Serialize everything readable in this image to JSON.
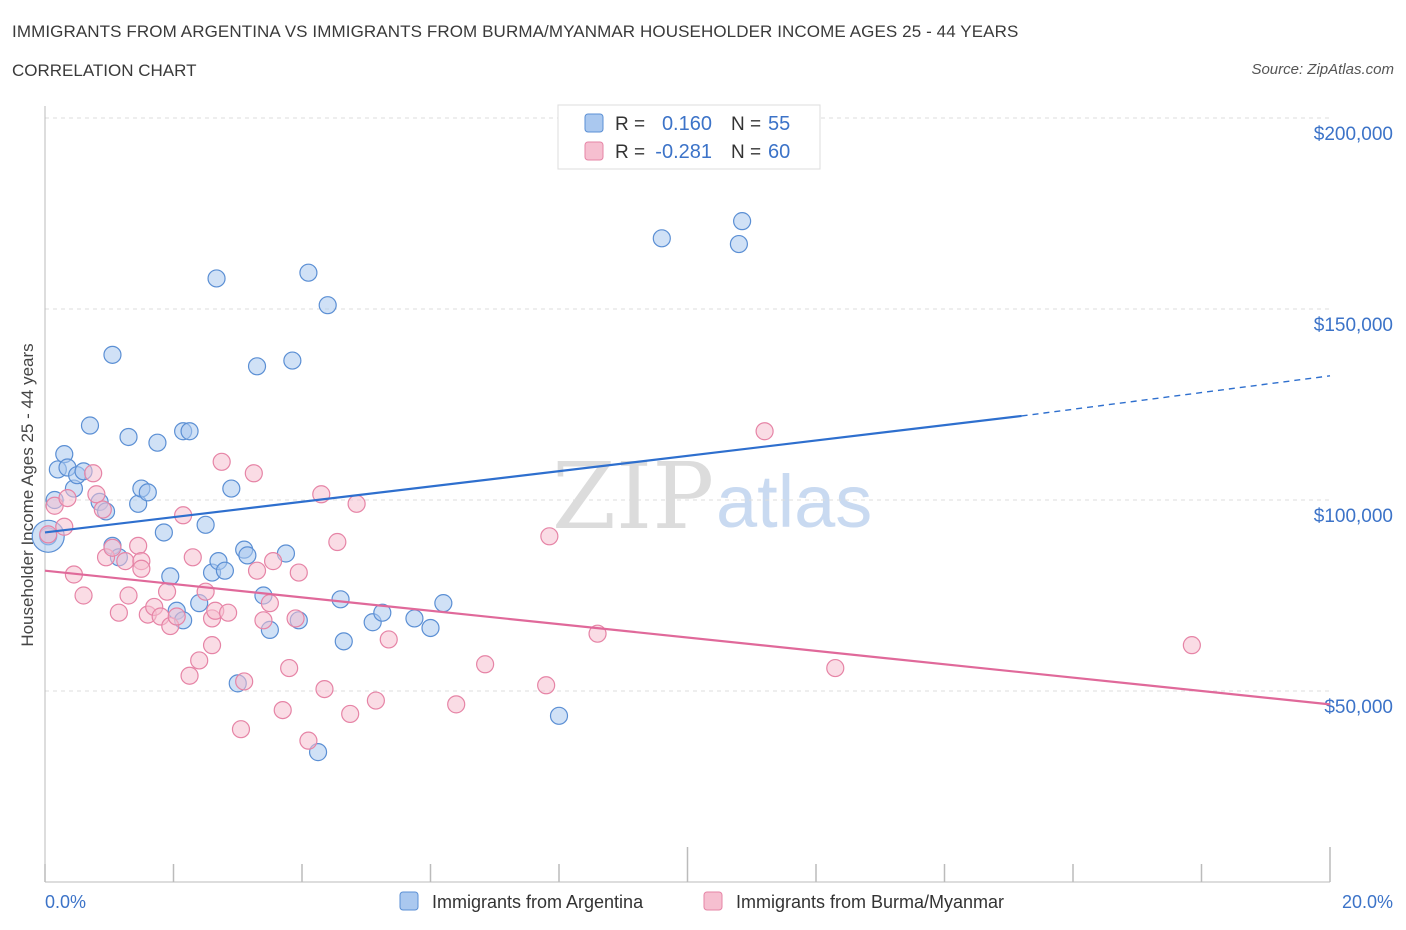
{
  "header": {
    "title": "IMMIGRANTS FROM ARGENTINA VS IMMIGRANTS FROM BURMA/MYANMAR HOUSEHOLDER INCOME AGES 25 - 44 YEARS",
    "subtitle": "CORRELATION CHART",
    "source": "Source: ZipAtlas.com"
  },
  "watermark": {
    "zip": "ZIP",
    "atlas": "atlas"
  },
  "stats": [
    {
      "r_label": "R =",
      "r_value": "0.160",
      "n_label": "N =",
      "n_value": "55"
    },
    {
      "r_label": "R =",
      "r_value": "-0.281",
      "n_label": "N =",
      "n_value": "60"
    }
  ],
  "colors": {
    "argentina_fill": "#aac8ef",
    "argentina_stroke": "#5b8fd4",
    "argentina_line": "#2e6fce",
    "burma_fill": "#f6bfd0",
    "burma_stroke": "#e684a6",
    "burma_line": "#e0699a",
    "axis_label": "#3c73c8",
    "grid": "#dddddd"
  },
  "chart_data": {
    "type": "scatter",
    "title": "IMMIGRANTS FROM ARGENTINA VS IMMIGRANTS FROM BURMA/MYANMAR HOUSEHOLDER INCOME AGES 25 - 44 YEARS",
    "xlabel": "",
    "ylabel": "Householder Income Ages 25 - 44 years",
    "xlim": [
      0,
      20
    ],
    "ylim": [
      0,
      200000
    ],
    "x_tick_labels": [
      "0.0%",
      "20.0%"
    ],
    "y_tick_labels": [
      "$200,000",
      "$150,000",
      "$100,000",
      "$50,000"
    ],
    "y_ticks": [
      200000,
      150000,
      100000,
      50000
    ],
    "grid": true,
    "legend_position": "bottom",
    "series": [
      {
        "name": "Immigrants from Argentina",
        "trend": {
          "x": [
            0,
            15.2
          ],
          "y": [
            91500,
            122000
          ],
          "dashed_to": [
            20,
            132500
          ]
        },
        "points": [
          [
            0.05,
            90500
          ],
          [
            0.15,
            100000
          ],
          [
            0.2,
            108000
          ],
          [
            0.3,
            112000
          ],
          [
            0.35,
            108500
          ],
          [
            0.45,
            103000
          ],
          [
            0.5,
            106500
          ],
          [
            0.6,
            107500
          ],
          [
            0.7,
            119500
          ],
          [
            0.85,
            99500
          ],
          [
            0.95,
            97000
          ],
          [
            1.05,
            88000
          ],
          [
            1.15,
            85000
          ],
          [
            1.05,
            138000
          ],
          [
            1.3,
            116500
          ],
          [
            1.45,
            99000
          ],
          [
            1.5,
            103000
          ],
          [
            1.6,
            102000
          ],
          [
            1.75,
            115000
          ],
          [
            1.85,
            91500
          ],
          [
            1.95,
            80000
          ],
          [
            2.05,
            71000
          ],
          [
            2.15,
            68500
          ],
          [
            2.15,
            118000
          ],
          [
            2.25,
            118000
          ],
          [
            2.4,
            73000
          ],
          [
            2.5,
            93500
          ],
          [
            2.6,
            81000
          ],
          [
            2.7,
            84000
          ],
          [
            2.8,
            81500
          ],
          [
            2.9,
            103000
          ],
          [
            3.0,
            52000
          ],
          [
            3.1,
            87000
          ],
          [
            3.15,
            85500
          ],
          [
            3.3,
            135000
          ],
          [
            3.4,
            75000
          ],
          [
            3.5,
            66000
          ],
          [
            3.75,
            86000
          ],
          [
            3.85,
            136500
          ],
          [
            3.95,
            68500
          ],
          [
            4.1,
            159500
          ],
          [
            4.25,
            34000
          ],
          [
            4.4,
            151000
          ],
          [
            4.6,
            74000
          ],
          [
            4.65,
            63000
          ],
          [
            5.1,
            68000
          ],
          [
            5.25,
            70500
          ],
          [
            5.75,
            69000
          ],
          [
            6.0,
            66500
          ],
          [
            6.2,
            73000
          ],
          [
            8.0,
            43500
          ],
          [
            9.6,
            168500
          ],
          [
            10.8,
            167000
          ],
          [
            10.85,
            173000
          ],
          [
            2.67,
            158000
          ]
        ]
      },
      {
        "name": "Immigrants from Burma/Myanmar",
        "trend": {
          "x": [
            0,
            20
          ],
          "y": [
            81500,
            46500
          ]
        },
        "points": [
          [
            0.05,
            91000
          ],
          [
            0.15,
            98500
          ],
          [
            0.3,
            93000
          ],
          [
            0.35,
            100500
          ],
          [
            0.45,
            80500
          ],
          [
            0.6,
            75000
          ],
          [
            0.75,
            107000
          ],
          [
            0.8,
            101500
          ],
          [
            0.9,
            97500
          ],
          [
            0.95,
            85000
          ],
          [
            1.05,
            87500
          ],
          [
            1.15,
            70500
          ],
          [
            1.25,
            84000
          ],
          [
            1.3,
            75000
          ],
          [
            1.45,
            88000
          ],
          [
            1.5,
            84000
          ],
          [
            1.6,
            70000
          ],
          [
            1.7,
            72000
          ],
          [
            1.8,
            69500
          ],
          [
            1.9,
            76000
          ],
          [
            1.95,
            67000
          ],
          [
            2.05,
            69500
          ],
          [
            2.15,
            96000
          ],
          [
            2.25,
            54000
          ],
          [
            2.3,
            85000
          ],
          [
            2.4,
            58000
          ],
          [
            2.5,
            76000
          ],
          [
            2.6,
            62000
          ],
          [
            2.6,
            69000
          ],
          [
            2.65,
            71000
          ],
          [
            2.75,
            110000
          ],
          [
            2.85,
            70500
          ],
          [
            3.05,
            40000
          ],
          [
            3.1,
            52500
          ],
          [
            3.25,
            107000
          ],
          [
            3.3,
            81500
          ],
          [
            3.4,
            68500
          ],
          [
            3.5,
            73000
          ],
          [
            3.55,
            84000
          ],
          [
            3.7,
            45000
          ],
          [
            3.8,
            56000
          ],
          [
            3.9,
            69000
          ],
          [
            3.95,
            81000
          ],
          [
            4.1,
            37000
          ],
          [
            4.3,
            101500
          ],
          [
            4.35,
            50500
          ],
          [
            4.55,
            89000
          ],
          [
            4.75,
            44000
          ],
          [
            4.85,
            99000
          ],
          [
            5.15,
            47500
          ],
          [
            5.35,
            63500
          ],
          [
            6.4,
            46500
          ],
          [
            6.85,
            57000
          ],
          [
            7.8,
            51500
          ],
          [
            7.85,
            90500
          ],
          [
            8.6,
            65000
          ],
          [
            11.2,
            118000
          ],
          [
            12.3,
            56000
          ],
          [
            17.85,
            62000
          ],
          [
            1.5,
            82000
          ]
        ]
      }
    ]
  }
}
